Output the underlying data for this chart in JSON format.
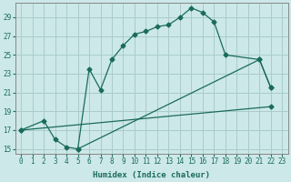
{
  "xlabel": "Humidex (Indice chaleur)",
  "bg_color": "#cce8e8",
  "grid_color": "#aacccc",
  "line_color": "#1a6b5a",
  "xlim": [
    -0.5,
    23.5
  ],
  "ylim": [
    14.5,
    30.5
  ],
  "xticks": [
    0,
    1,
    2,
    3,
    4,
    5,
    6,
    7,
    8,
    9,
    10,
    11,
    12,
    13,
    14,
    15,
    16,
    17,
    18,
    19,
    20,
    21,
    22,
    23
  ],
  "yticks": [
    15,
    17,
    19,
    21,
    23,
    25,
    27,
    29
  ],
  "curve1_x": [
    0,
    2,
    3,
    4,
    5,
    6,
    7,
    8,
    9,
    10,
    11,
    12,
    13,
    14,
    15,
    16,
    17,
    18,
    21,
    22
  ],
  "curve1_y": [
    17.0,
    18.0,
    16.0,
    15.2,
    15.0,
    23.5,
    21.3,
    24.5,
    26.0,
    27.2,
    27.5,
    28.0,
    28.2,
    29.0,
    30.0,
    29.5,
    28.5,
    25.0,
    24.5,
    21.5
  ],
  "curve2_x": [
    0,
    22
  ],
  "curve2_y": [
    17.0,
    19.5
  ],
  "curve3_x": [
    5,
    21,
    22
  ],
  "curve3_y": [
    15.0,
    24.5,
    21.5
  ]
}
